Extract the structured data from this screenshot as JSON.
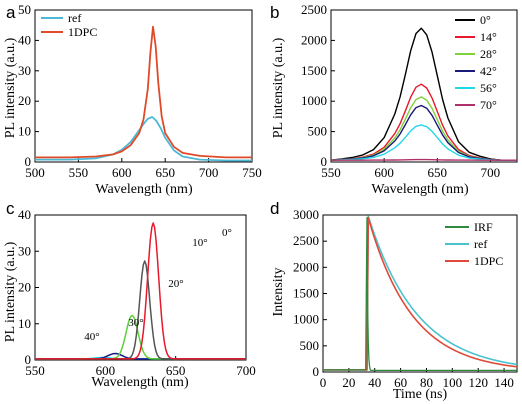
{
  "chart_data": [
    {
      "panel": "a",
      "type": "line",
      "xlabel": "Wavelength (nm)",
      "ylabel": "PL intensity (a.u.)",
      "xlim": [
        500,
        750
      ],
      "ylim": [
        0,
        50
      ],
      "xticks": [
        500,
        550,
        600,
        650,
        700,
        750
      ],
      "yticks": [
        0,
        10,
        20,
        30,
        40,
        50
      ],
      "legend_position": "top-left",
      "series": [
        {
          "name": "ref",
          "color": "#4db8d6",
          "x": [
            500,
            540,
            570,
            590,
            600,
            610,
            620,
            625,
            630,
            635,
            640,
            645,
            650,
            660,
            670,
            690,
            720,
            750
          ],
          "y": [
            0.8,
            0.8,
            1.2,
            2.5,
            4.0,
            6.5,
            10.5,
            12.5,
            14.2,
            14.8,
            13.5,
            11.0,
            8.0,
            3.8,
            1.8,
            0.8,
            0.5,
            0.5
          ]
        },
        {
          "name": "1DPC",
          "color": "#e04a28",
          "x": [
            500,
            540,
            570,
            590,
            600,
            610,
            620,
            625,
            630,
            633,
            636,
            639,
            642,
            646,
            650,
            660,
            670,
            690,
            720,
            750
          ],
          "y": [
            1.5,
            1.5,
            1.8,
            2.5,
            3.5,
            5.5,
            9.5,
            14.0,
            24.0,
            36.0,
            44.5,
            38.0,
            26.0,
            15.0,
            9.5,
            5.0,
            3.0,
            2.0,
            1.5,
            1.5
          ]
        }
      ]
    },
    {
      "panel": "b",
      "type": "line",
      "xlabel": "Wavelength (nm)",
      "ylabel": "PL intensity (a.u.)",
      "xlim": [
        550,
        725
      ],
      "ylim": [
        0,
        2500
      ],
      "xticks": [
        550,
        600,
        650,
        700
      ],
      "yticks": [
        0,
        500,
        1000,
        1500,
        2000,
        2500
      ],
      "legend_position": "top-right",
      "series": [
        {
          "name": "0°",
          "color": "#000000",
          "peak": 2200
        },
        {
          "name": "14°",
          "color": "#e8192c",
          "peak": 1280
        },
        {
          "name": "28°",
          "color": "#7fd23a",
          "peak": 1070
        },
        {
          "name": "42°",
          "color": "#1a1a7a",
          "peak": 930
        },
        {
          "name": "56°",
          "color": "#22d8e8",
          "peak": 610
        },
        {
          "name": "70°",
          "color": "#b0306a",
          "peak": 40
        }
      ],
      "x": [
        550,
        560,
        570,
        580,
        590,
        600,
        610,
        615,
        620,
        625,
        630,
        635,
        640,
        645,
        650,
        655,
        660,
        670,
        680,
        690,
        700,
        710,
        725
      ],
      "shape": [
        0.0,
        0.01,
        0.02,
        0.04,
        0.08,
        0.17,
        0.35,
        0.48,
        0.65,
        0.83,
        0.96,
        1.0,
        0.95,
        0.82,
        0.64,
        0.46,
        0.32,
        0.14,
        0.06,
        0.03,
        0.01,
        0.0,
        0.0
      ],
      "baseline": 30
    },
    {
      "panel": "c",
      "type": "line",
      "xlabel": "Wavelength (nm)",
      "ylabel": "PL intensity (a.u.)",
      "xlim": [
        550,
        700
      ],
      "ylim": [
        0,
        40
      ],
      "xticks": [
        550,
        600,
        650,
        700
      ],
      "yticks": [
        0,
        10,
        20,
        30,
        40
      ],
      "annotations": [
        "0°",
        "10°",
        "20°",
        "30°",
        "40°"
      ],
      "series": [
        {
          "name": "0°",
          "color": "#e8192c",
          "center": 634,
          "peak": 37.5,
          "width": 5.5
        },
        {
          "name": "10°",
          "color": "#555555",
          "center": 628,
          "peak": 27.0,
          "width": 5.0
        },
        {
          "name": "20°",
          "color": "#5ad23a",
          "center": 619,
          "peak": 12.0,
          "width": 6.0
        },
        {
          "name": "30°",
          "color": "#1a1a8a",
          "center": 607,
          "peak": 1.5,
          "width": 7.0
        },
        {
          "name": "40°",
          "color": "#22d8e8",
          "center": 598,
          "peak": 0.4,
          "width": 8.0
        }
      ]
    },
    {
      "panel": "d",
      "type": "line",
      "xlabel": "Time (ns)",
      "ylabel": "Intensity",
      "xlim": [
        0,
        150
      ],
      "ylim": [
        0,
        3000
      ],
      "xticks": [
        0,
        20,
        40,
        60,
        80,
        100,
        120,
        140
      ],
      "yticks": [
        0,
        500,
        1000,
        1500,
        2000,
        2500,
        3000
      ],
      "legend_position": "top-right",
      "series": [
        {
          "name": "IRF",
          "color": "#2e8b3e",
          "t0": 34,
          "peak": 2950,
          "tau": 0.6
        },
        {
          "name": "ref",
          "color": "#4ac3cf",
          "t0": 35,
          "peak": 2980,
          "tau": 38
        },
        {
          "name": "1DPC",
          "color": "#e04a3a",
          "t0": 35,
          "peak": 2950,
          "tau": 34
        }
      ]
    }
  ],
  "panels": {
    "a": {
      "letter": "a",
      "xlabel": "Wavelength (nm)",
      "ylabel": "PL intensity (a.u.)"
    },
    "b": {
      "letter": "b",
      "xlabel": "Wavelength (nm)",
      "ylabel": "PL intensity (a.u.)"
    },
    "c": {
      "letter": "c",
      "xlabel": "Wavelength (nm)",
      "ylabel": "PL intensity (a.u.)"
    },
    "d": {
      "letter": "d",
      "xlabel": "Time (ns)",
      "ylabel": "Intensity"
    }
  }
}
